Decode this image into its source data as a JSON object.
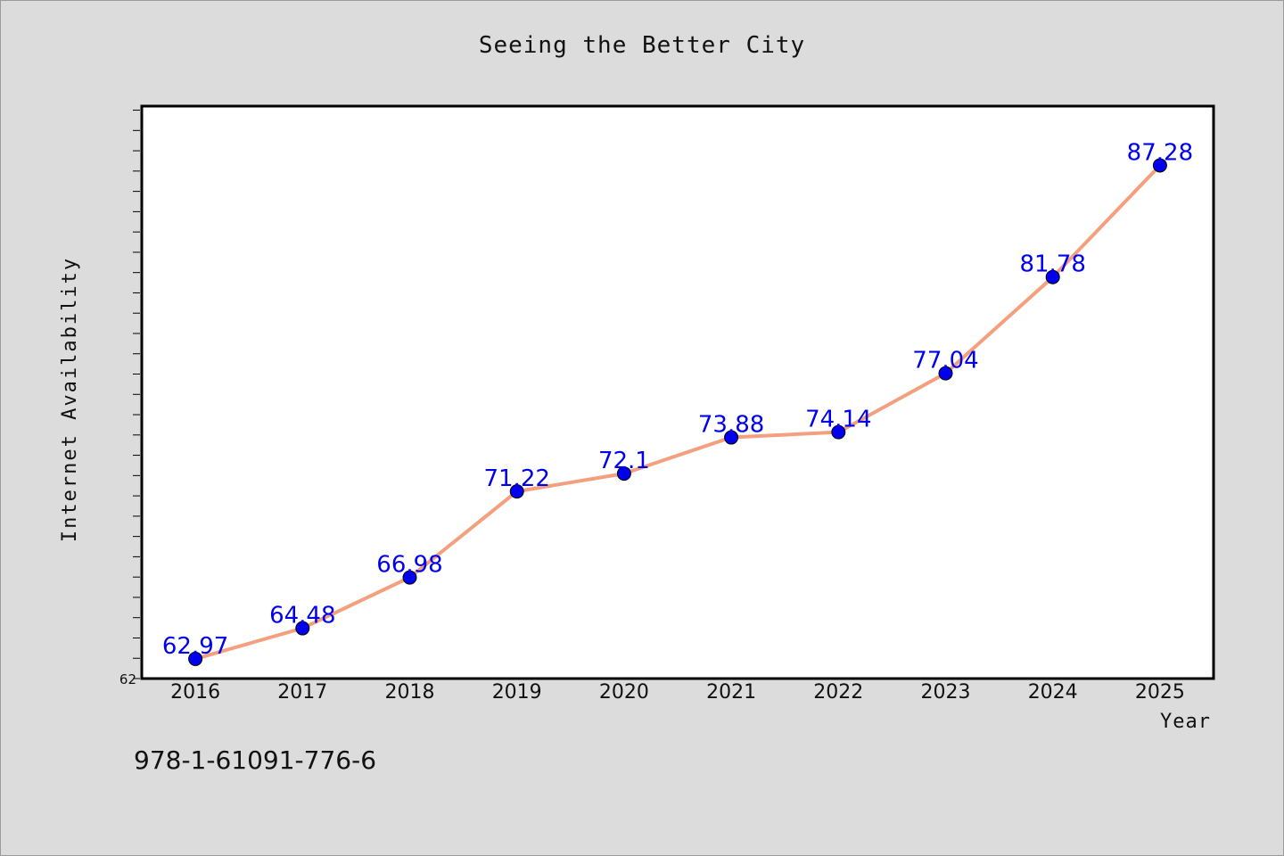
{
  "chart_data": {
    "type": "line",
    "title": "Seeing the Better City",
    "xlabel": "Year",
    "ylabel": "Internet Availability",
    "x": [
      2016,
      2017,
      2018,
      2019,
      2020,
      2021,
      2022,
      2023,
      2024,
      2025
    ],
    "x_tick_labels": [
      "2016",
      "2017",
      "2018",
      "2019",
      "2020",
      "2021",
      "2022",
      "2023",
      "2024",
      "2025"
    ],
    "series": [
      {
        "values": [
          62.97,
          64.48,
          66.98,
          71.22,
          72.1,
          73.88,
          74.14,
          77.04,
          81.78,
          87.28
        ],
        "data_labels": [
          "62.97",
          "64.48",
          "66.98",
          "71.22",
          "72.1",
          "73.88",
          "74.14",
          "77.04",
          "81.78",
          "87.28"
        ],
        "line_color": "#f4a07e",
        "marker_color": "#0000ee",
        "label_color": "#0000ee"
      }
    ],
    "y_tick_labels": [
      "62"
    ],
    "y_tick_values": [
      62
    ],
    "ylim": [
      62,
      90.2
    ],
    "xlim": [
      2015.5,
      2025.5
    ],
    "y_minor_step": 1,
    "grid": false,
    "legend": "none"
  },
  "footer": {
    "isbn": "978-1-61091-776-6"
  },
  "colors": {
    "background": "#dcdcdc",
    "plot_background": "#ffffff",
    "axis": "#000000"
  }
}
